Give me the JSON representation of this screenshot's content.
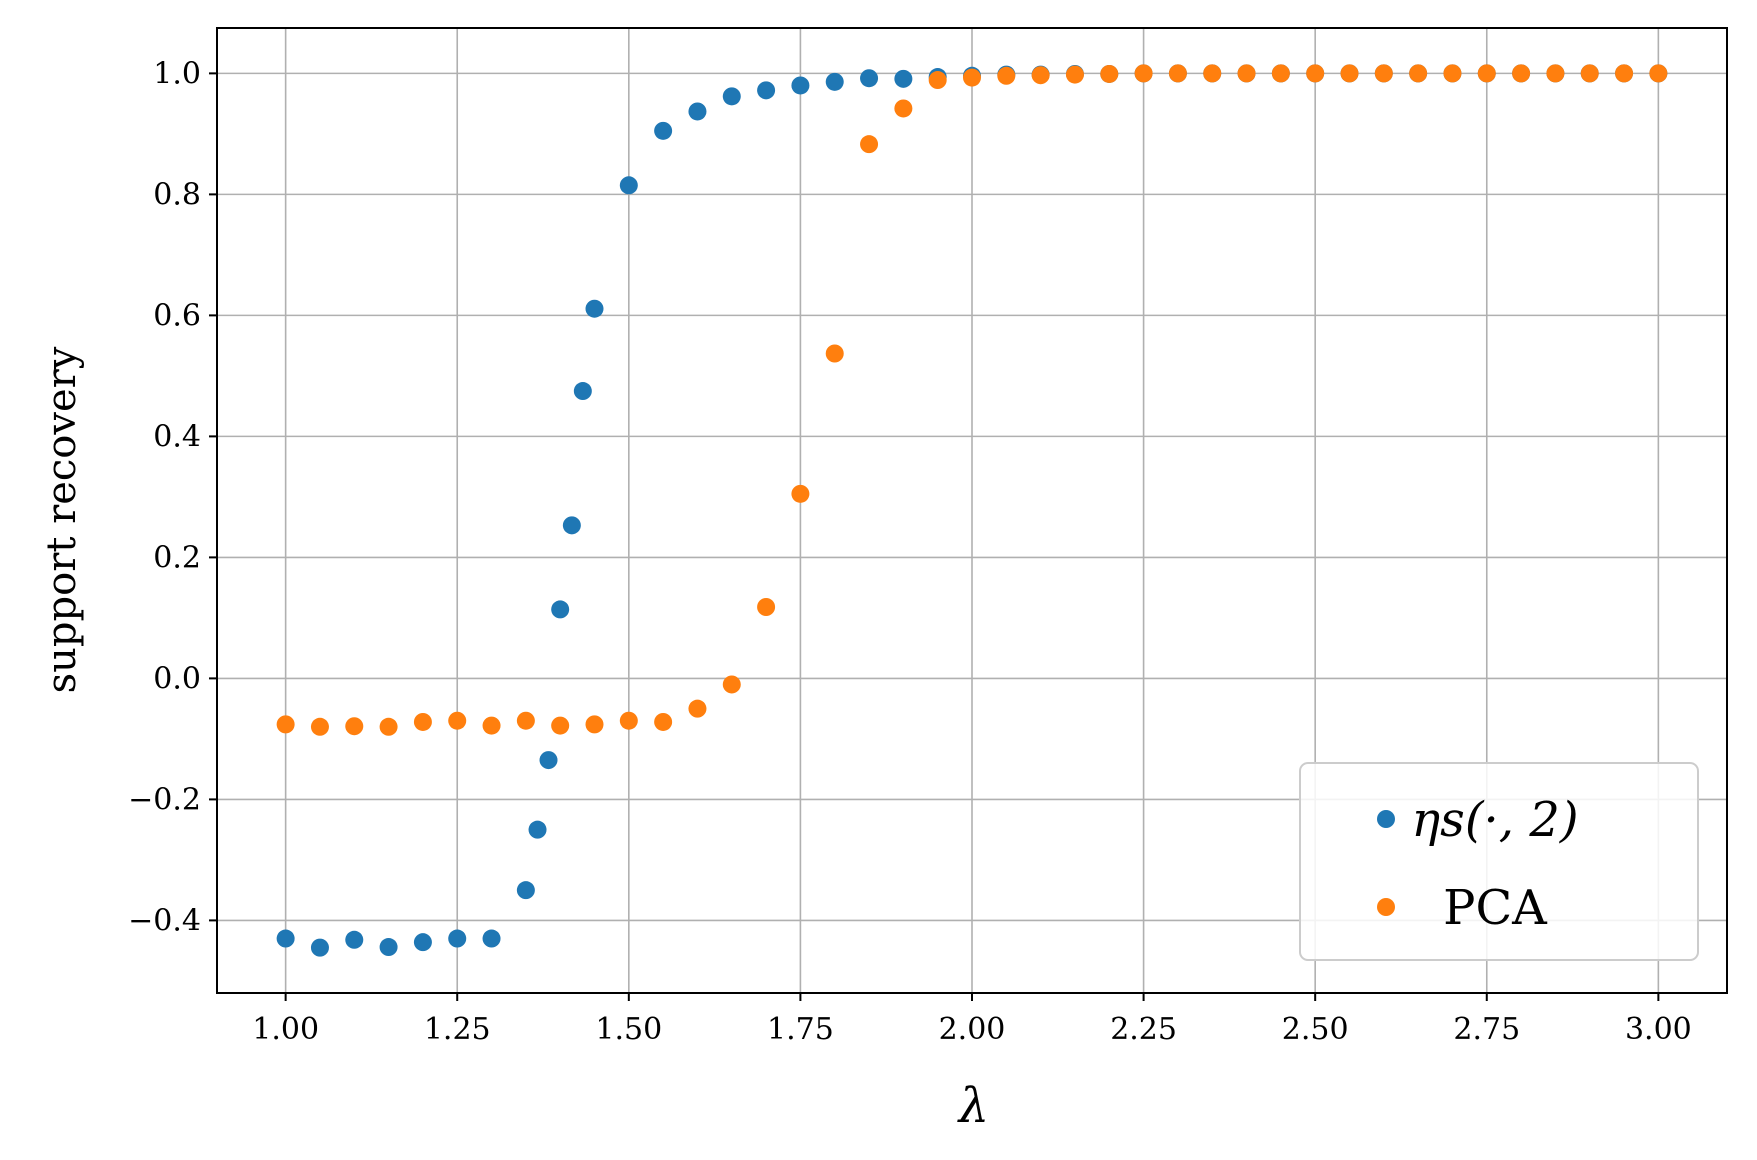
{
  "chart_data": {
    "type": "scatter",
    "xlabel": "λ",
    "ylabel": "support recovery",
    "xlim": [
      0.9,
      3.1
    ],
    "ylim": [
      -0.52,
      1.075
    ],
    "xticks": [
      "1.00",
      "1.25",
      "1.50",
      "1.75",
      "2.00",
      "2.25",
      "2.50",
      "2.75",
      "3.00"
    ],
    "yticks": [
      "−0.4",
      "−0.2",
      "0.0",
      "0.2",
      "0.4",
      "0.6",
      "0.8",
      "1.0"
    ],
    "grid": true,
    "legend_position": "lower-right",
    "series": [
      {
        "name": "ηs(·, 2)",
        "color": "#1f77b4",
        "points": [
          [
            1.0,
            -0.43
          ],
          [
            1.05,
            -0.445
          ],
          [
            1.1,
            -0.432
          ],
          [
            1.15,
            -0.444
          ],
          [
            1.2,
            -0.436
          ],
          [
            1.25,
            -0.43
          ],
          [
            1.3,
            -0.43
          ],
          [
            1.35,
            -0.35
          ],
          [
            1.367,
            -0.25
          ],
          [
            1.383,
            -0.135
          ],
          [
            1.4,
            0.114
          ],
          [
            1.417,
            0.253
          ],
          [
            1.433,
            0.475
          ],
          [
            1.45,
            0.611
          ],
          [
            1.5,
            0.815
          ],
          [
            1.55,
            0.905
          ],
          [
            1.6,
            0.937
          ],
          [
            1.65,
            0.962
          ],
          [
            1.7,
            0.972
          ],
          [
            1.75,
            0.98
          ],
          [
            1.8,
            0.986
          ],
          [
            1.85,
            0.992
          ],
          [
            1.9,
            0.991
          ],
          [
            1.95,
            0.994
          ],
          [
            2.0,
            0.996
          ],
          [
            2.05,
            0.998
          ],
          [
            2.1,
            0.998
          ],
          [
            2.15,
            0.999
          ],
          [
            2.2,
            0.999
          ],
          [
            2.25,
            1.0
          ],
          [
            2.3,
            1.0
          ],
          [
            2.35,
            1.0
          ],
          [
            2.4,
            1.0
          ],
          [
            2.45,
            1.0
          ],
          [
            2.5,
            1.0
          ],
          [
            2.55,
            1.0
          ],
          [
            2.6,
            1.0
          ],
          [
            2.65,
            1.0
          ],
          [
            2.7,
            1.0
          ],
          [
            2.75,
            1.0
          ],
          [
            2.8,
            1.0
          ],
          [
            2.85,
            1.0
          ],
          [
            2.9,
            1.0
          ],
          [
            2.95,
            1.0
          ],
          [
            3.0,
            1.0
          ]
        ]
      },
      {
        "name": "PCA",
        "color": "#ff7f0e",
        "points": [
          [
            1.0,
            -0.076
          ],
          [
            1.05,
            -0.08
          ],
          [
            1.1,
            -0.079
          ],
          [
            1.15,
            -0.08
          ],
          [
            1.2,
            -0.072
          ],
          [
            1.25,
            -0.07
          ],
          [
            1.3,
            -0.078
          ],
          [
            1.35,
            -0.07
          ],
          [
            1.4,
            -0.078
          ],
          [
            1.45,
            -0.076
          ],
          [
            1.5,
            -0.07
          ],
          [
            1.55,
            -0.072
          ],
          [
            1.6,
            -0.05
          ],
          [
            1.65,
            -0.01
          ],
          [
            1.7,
            0.118
          ],
          [
            1.75,
            0.305
          ],
          [
            1.8,
            0.537
          ],
          [
            1.85,
            0.883
          ],
          [
            1.9,
            0.942
          ],
          [
            1.95,
            0.989
          ],
          [
            2.0,
            0.993
          ],
          [
            2.05,
            0.996
          ],
          [
            2.1,
            0.997
          ],
          [
            2.15,
            0.998
          ],
          [
            2.2,
            0.999
          ],
          [
            2.25,
            1.0
          ],
          [
            2.3,
            1.0
          ],
          [
            2.35,
            1.0
          ],
          [
            2.4,
            1.0
          ],
          [
            2.45,
            1.0
          ],
          [
            2.5,
            1.0
          ],
          [
            2.55,
            1.0
          ],
          [
            2.6,
            1.0
          ],
          [
            2.65,
            1.0
          ],
          [
            2.7,
            1.0
          ],
          [
            2.75,
            1.0
          ],
          [
            2.8,
            1.0
          ],
          [
            2.85,
            1.0
          ],
          [
            2.9,
            1.0
          ],
          [
            2.95,
            1.0
          ],
          [
            3.0,
            1.0
          ]
        ]
      }
    ]
  }
}
